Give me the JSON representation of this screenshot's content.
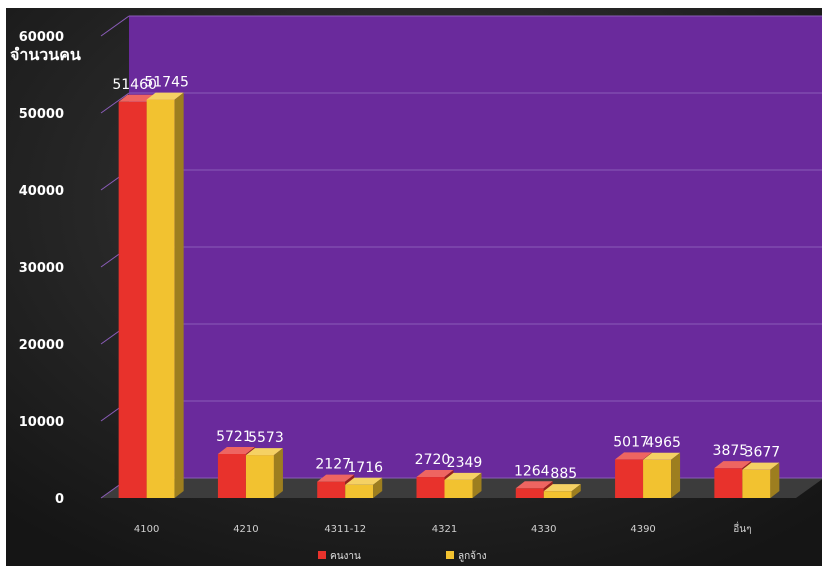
{
  "chart_data": {
    "type": "bar",
    "title": "",
    "ylabel": "จำนวนคน",
    "xlabel": "",
    "categories": [
      "4100",
      "4210",
      "4311-12",
      "4321",
      "4330",
      "4390",
      "อื่นๆ"
    ],
    "series": [
      {
        "name": "คนงาน",
        "color": "#e8322c",
        "values": [
          51460,
          5721,
          2127,
          2720,
          1264,
          5017,
          3875
        ]
      },
      {
        "name": "ลูกจ้าง",
        "color": "#f2c230",
        "values": [
          51745,
          5573,
          1716,
          2349,
          885,
          4965,
          3677
        ]
      }
    ],
    "ylim": [
      0,
      60000
    ],
    "yticks": [
      0,
      10000,
      20000,
      30000,
      40000,
      50000,
      60000
    ],
    "grid": true,
    "legend": "bottom-center",
    "colors": {
      "plot_background": "#6a2a9c",
      "frame_background": "#2b2b2b",
      "label_text": "#ffffff"
    }
  }
}
